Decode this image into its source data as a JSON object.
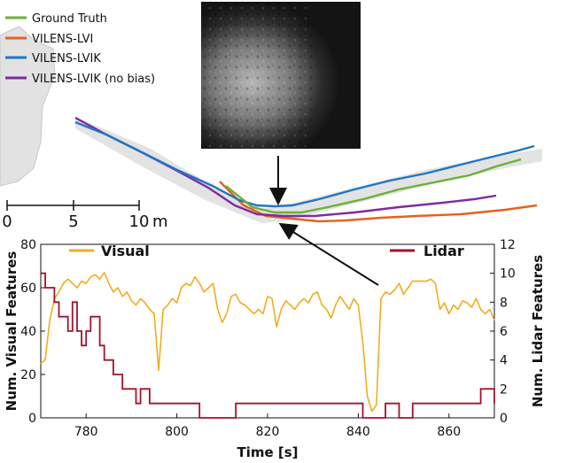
{
  "colors": {
    "ground_truth": "#6ab23a",
    "lvi": "#e8601c",
    "lvik": "#1f77c4",
    "lvik_nobias": "#7f2aa0",
    "visual": "#f0ad1e",
    "lidar": "#a3122a",
    "map_band": "#cfcfcf"
  },
  "trajectory_legend": [
    {
      "label": "Ground Truth",
      "color_key": "ground_truth"
    },
    {
      "label": "VILENS-LVI",
      "color_key": "lvi"
    },
    {
      "label": "VILENS-LVIK",
      "color_key": "lvik"
    },
    {
      "label": "VILENS-LVIK (no bias)",
      "color_key": "lvik_nobias"
    }
  ],
  "scale_bar": {
    "ticks": [
      "0",
      "5",
      "10"
    ],
    "unit": "m"
  },
  "chart_data": {
    "type": "line",
    "xlabel": "Time [s]",
    "ylabel_left": "Num. Visual Features",
    "ylabel_right": "Num. Lidar Features",
    "xlim": [
      770,
      870
    ],
    "ylim_left": [
      0,
      80
    ],
    "ylim_right": [
      0,
      12
    ],
    "x_ticks": [
      780,
      800,
      820,
      840,
      860
    ],
    "y_ticks_left": [
      0,
      20,
      40,
      60,
      80
    ],
    "y_ticks_right": [
      0,
      2,
      4,
      6,
      8,
      10,
      12
    ],
    "legend_positions": {
      "Visual": "top-left",
      "Lidar": "top-right"
    },
    "series": [
      {
        "name": "Visual",
        "axis": "left",
        "x": [
          770,
          771,
          772,
          773,
          774,
          775,
          776,
          777,
          778,
          779,
          780,
          781,
          782,
          783,
          784,
          785,
          786,
          787,
          788,
          789,
          790,
          791,
          792,
          793,
          794,
          795,
          796,
          797,
          798,
          799,
          800,
          801,
          802,
          803,
          804,
          805,
          806,
          807,
          808,
          809,
          810,
          811,
          812,
          813,
          814,
          815,
          816,
          817,
          818,
          819,
          820,
          821,
          822,
          823,
          824,
          825,
          826,
          827,
          828,
          829,
          830,
          831,
          832,
          833,
          834,
          835,
          836,
          837,
          838,
          839,
          840,
          841,
          842,
          843,
          844,
          845,
          846,
          847,
          848,
          849,
          850,
          851,
          852,
          853,
          854,
          855,
          856,
          857,
          858,
          859,
          860,
          861,
          862,
          863,
          864,
          865,
          866,
          867,
          868,
          869,
          870
        ],
        "values": [
          25,
          27,
          45,
          55,
          58,
          62,
          64,
          62,
          60,
          63,
          62,
          65,
          66,
          64,
          67,
          62,
          58,
          60,
          56,
          58,
          54,
          52,
          55,
          53,
          50,
          48,
          22,
          50,
          52,
          55,
          53,
          60,
          62,
          61,
          65,
          62,
          58,
          60,
          62,
          50,
          44,
          48,
          56,
          57,
          53,
          52,
          50,
          48,
          50,
          48,
          56,
          55,
          42,
          50,
          54,
          52,
          50,
          53,
          55,
          53,
          57,
          58,
          52,
          50,
          46,
          52,
          56,
          53,
          50,
          55,
          52,
          35,
          10,
          3,
          6,
          55,
          58,
          57,
          59,
          62,
          57,
          60,
          63,
          63,
          63,
          63,
          64,
          62,
          50,
          53,
          48,
          52,
          50,
          54,
          53,
          51,
          55,
          50,
          48,
          50,
          45
        ]
      },
      {
        "name": "Lidar",
        "axis": "right",
        "x": [
          770,
          771,
          772,
          773,
          774,
          775,
          776,
          777,
          778,
          779,
          780,
          781,
          782,
          783,
          784,
          785,
          786,
          787,
          788,
          789,
          790,
          791,
          792,
          793,
          794,
          795,
          796,
          797,
          798,
          799,
          800,
          801,
          802,
          803,
          804,
          805,
          806,
          807,
          808,
          809,
          810,
          811,
          812,
          813,
          814,
          815,
          816,
          817,
          818,
          819,
          820,
          821,
          822,
          823,
          824,
          825,
          826,
          827,
          828,
          829,
          830,
          831,
          832,
          833,
          834,
          835,
          836,
          837,
          838,
          839,
          840,
          841,
          842,
          843,
          844,
          845,
          846,
          847,
          848,
          849,
          850,
          851,
          852,
          853,
          854,
          855,
          856,
          857,
          858,
          859,
          860,
          861,
          862,
          863,
          864,
          865,
          866,
          867,
          868,
          869,
          870
        ],
        "values": [
          10,
          9,
          9,
          8,
          7,
          7,
          6,
          8,
          6,
          5,
          6,
          7,
          7,
          5,
          4,
          4,
          3,
          3,
          2,
          2,
          2,
          1,
          2,
          2,
          1,
          1,
          1,
          1,
          1,
          1,
          1,
          1,
          1,
          1,
          1,
          0,
          0,
          0,
          0,
          0,
          0,
          0,
          0,
          1,
          1,
          1,
          1,
          1,
          1,
          1,
          1,
          1,
          1,
          1,
          1,
          1,
          1,
          1,
          1,
          1,
          1,
          1,
          1,
          1,
          1,
          1,
          1,
          1,
          1,
          1,
          1,
          0,
          0,
          0,
          0,
          0,
          1,
          1,
          1,
          0,
          0,
          0,
          1,
          1,
          1,
          1,
          1,
          1,
          1,
          1,
          1,
          1,
          1,
          1,
          1,
          1,
          1,
          2,
          2,
          2,
          1
        ]
      }
    ]
  }
}
